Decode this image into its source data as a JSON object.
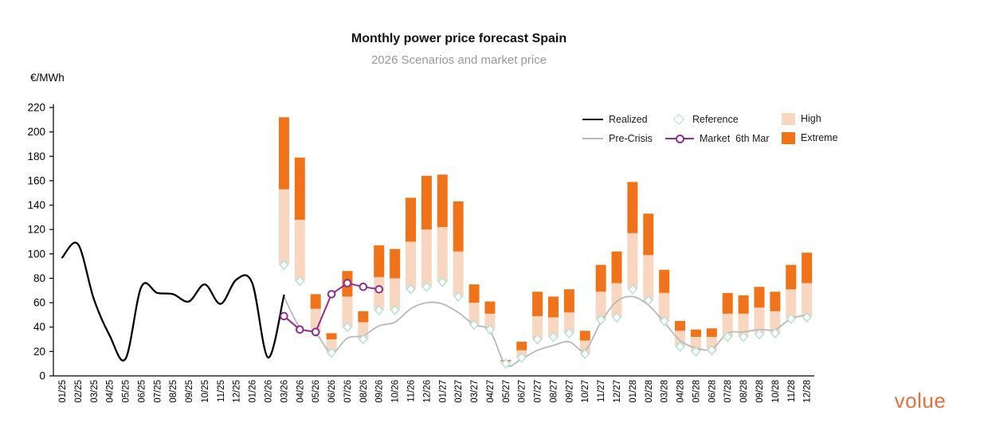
{
  "title": "Monthly power price forecast Spain",
  "subtitle": "2026 Scenarios and market price",
  "ylabel": "€/MWh",
  "logo_text": "volue",
  "legend": {
    "realized": "Realized",
    "pre_crisis": "Pre-Crisis",
    "reference": "Reference",
    "market": "Market  6th Mar",
    "high": "High",
    "extreme": "Extreme"
  },
  "colors": {
    "realized": "#000000",
    "pre_crisis": "#b8b8b8",
    "market": "#8e2e8e",
    "reference_stroke": "#b7e2d8",
    "high": "#f9d6bf",
    "extreme": "#f0731a",
    "subtitle": "#999999",
    "logo": "#e2713d"
  },
  "chart_data": {
    "type": "combo: floating range bars (High/Extreme) + lines (Realized, Pre-Crisis, Market) + diamond markers (Reference)",
    "title": "Monthly power price forecast Spain",
    "subtitle": "2026 Scenarios and market price",
    "ylabel": "€/MWh",
    "ylim": [
      0,
      220
    ],
    "y_ticks": [
      0,
      20,
      40,
      60,
      80,
      100,
      120,
      140,
      160,
      180,
      200,
      220
    ],
    "grid": false,
    "legend_position": "top-right, two rows",
    "x_labels": [
      "01/25",
      "02/25",
      "03/25",
      "04/25",
      "05/25",
      "06/25",
      "07/25",
      "08/25",
      "09/25",
      "10/25",
      "11/25",
      "12/25",
      "01/26",
      "02/26",
      "03/26",
      "04/26",
      "05/26",
      "06/26",
      "07/26",
      "08/26",
      "09/26",
      "10/26",
      "11/26",
      "12/26",
      "01/27",
      "02/27",
      "03/27",
      "04/27",
      "05/27",
      "06/27",
      "07/27",
      "08/27",
      "09/27",
      "10/27",
      "11/27",
      "12/27",
      "01/28",
      "02/28",
      "03/28",
      "04/28",
      "05/28",
      "06/28",
      "07/28",
      "08/28",
      "09/28",
      "10/28",
      "11/28",
      "12/28"
    ],
    "series": [
      {
        "name": "Realized",
        "kind": "line",
        "color_key": "realized",
        "start_index": 0,
        "values": [
          97,
          108,
          63,
          33,
          14,
          73,
          68,
          67,
          61,
          75,
          59,
          79,
          76,
          15,
          66
        ]
      },
      {
        "name": "Pre-Crisis",
        "kind": "line",
        "color_key": "pre_crisis",
        "start_index": 14,
        "values": [
          65,
          40,
          35,
          19,
          31,
          33,
          41,
          44,
          55,
          60,
          59,
          52,
          42,
          37,
          9,
          14,
          21,
          25,
          28,
          21,
          44,
          61,
          65,
          58,
          44,
          29,
          23,
          22,
          35,
          36,
          38,
          38,
          47,
          50
        ]
      },
      {
        "name": "Market 6th Mar",
        "kind": "line_markers",
        "color_key": "market",
        "start_index": 14,
        "values": [
          49,
          38,
          36,
          67,
          76,
          73,
          71
        ]
      },
      {
        "name": "Reference",
        "kind": "diamond",
        "color_key": "reference_stroke",
        "start_index": 14,
        "values": [
          91,
          78,
          36,
          19,
          40,
          30,
          54,
          54,
          71,
          73,
          77,
          65,
          42,
          38,
          10,
          15,
          30,
          32,
          35,
          18,
          46,
          48,
          71,
          62,
          45,
          24,
          20,
          21,
          32,
          32,
          34,
          35,
          47,
          48
        ]
      },
      {
        "name": "High",
        "kind": "bar_range",
        "color_key": "high",
        "start_index": 14,
        "range_from": "Reference",
        "values": [
          153,
          128,
          55,
          30,
          65,
          44,
          81,
          80,
          110,
          120,
          122,
          102,
          60,
          51,
          12,
          21,
          49,
          48,
          52,
          29,
          69,
          76,
          117,
          99,
          68,
          37,
          32,
          32,
          51,
          51,
          56,
          53,
          71,
          76
        ]
      },
      {
        "name": "Extreme",
        "kind": "bar_range",
        "color_key": "extreme",
        "start_index": 14,
        "range_from": "High",
        "values": [
          212,
          179,
          67,
          35,
          86,
          53,
          107,
          104,
          146,
          164,
          165,
          143,
          75,
          61,
          13,
          28,
          69,
          65,
          71,
          37,
          91,
          102,
          159,
          133,
          87,
          45,
          38,
          39,
          68,
          66,
          73,
          69,
          91,
          101
        ]
      }
    ]
  }
}
